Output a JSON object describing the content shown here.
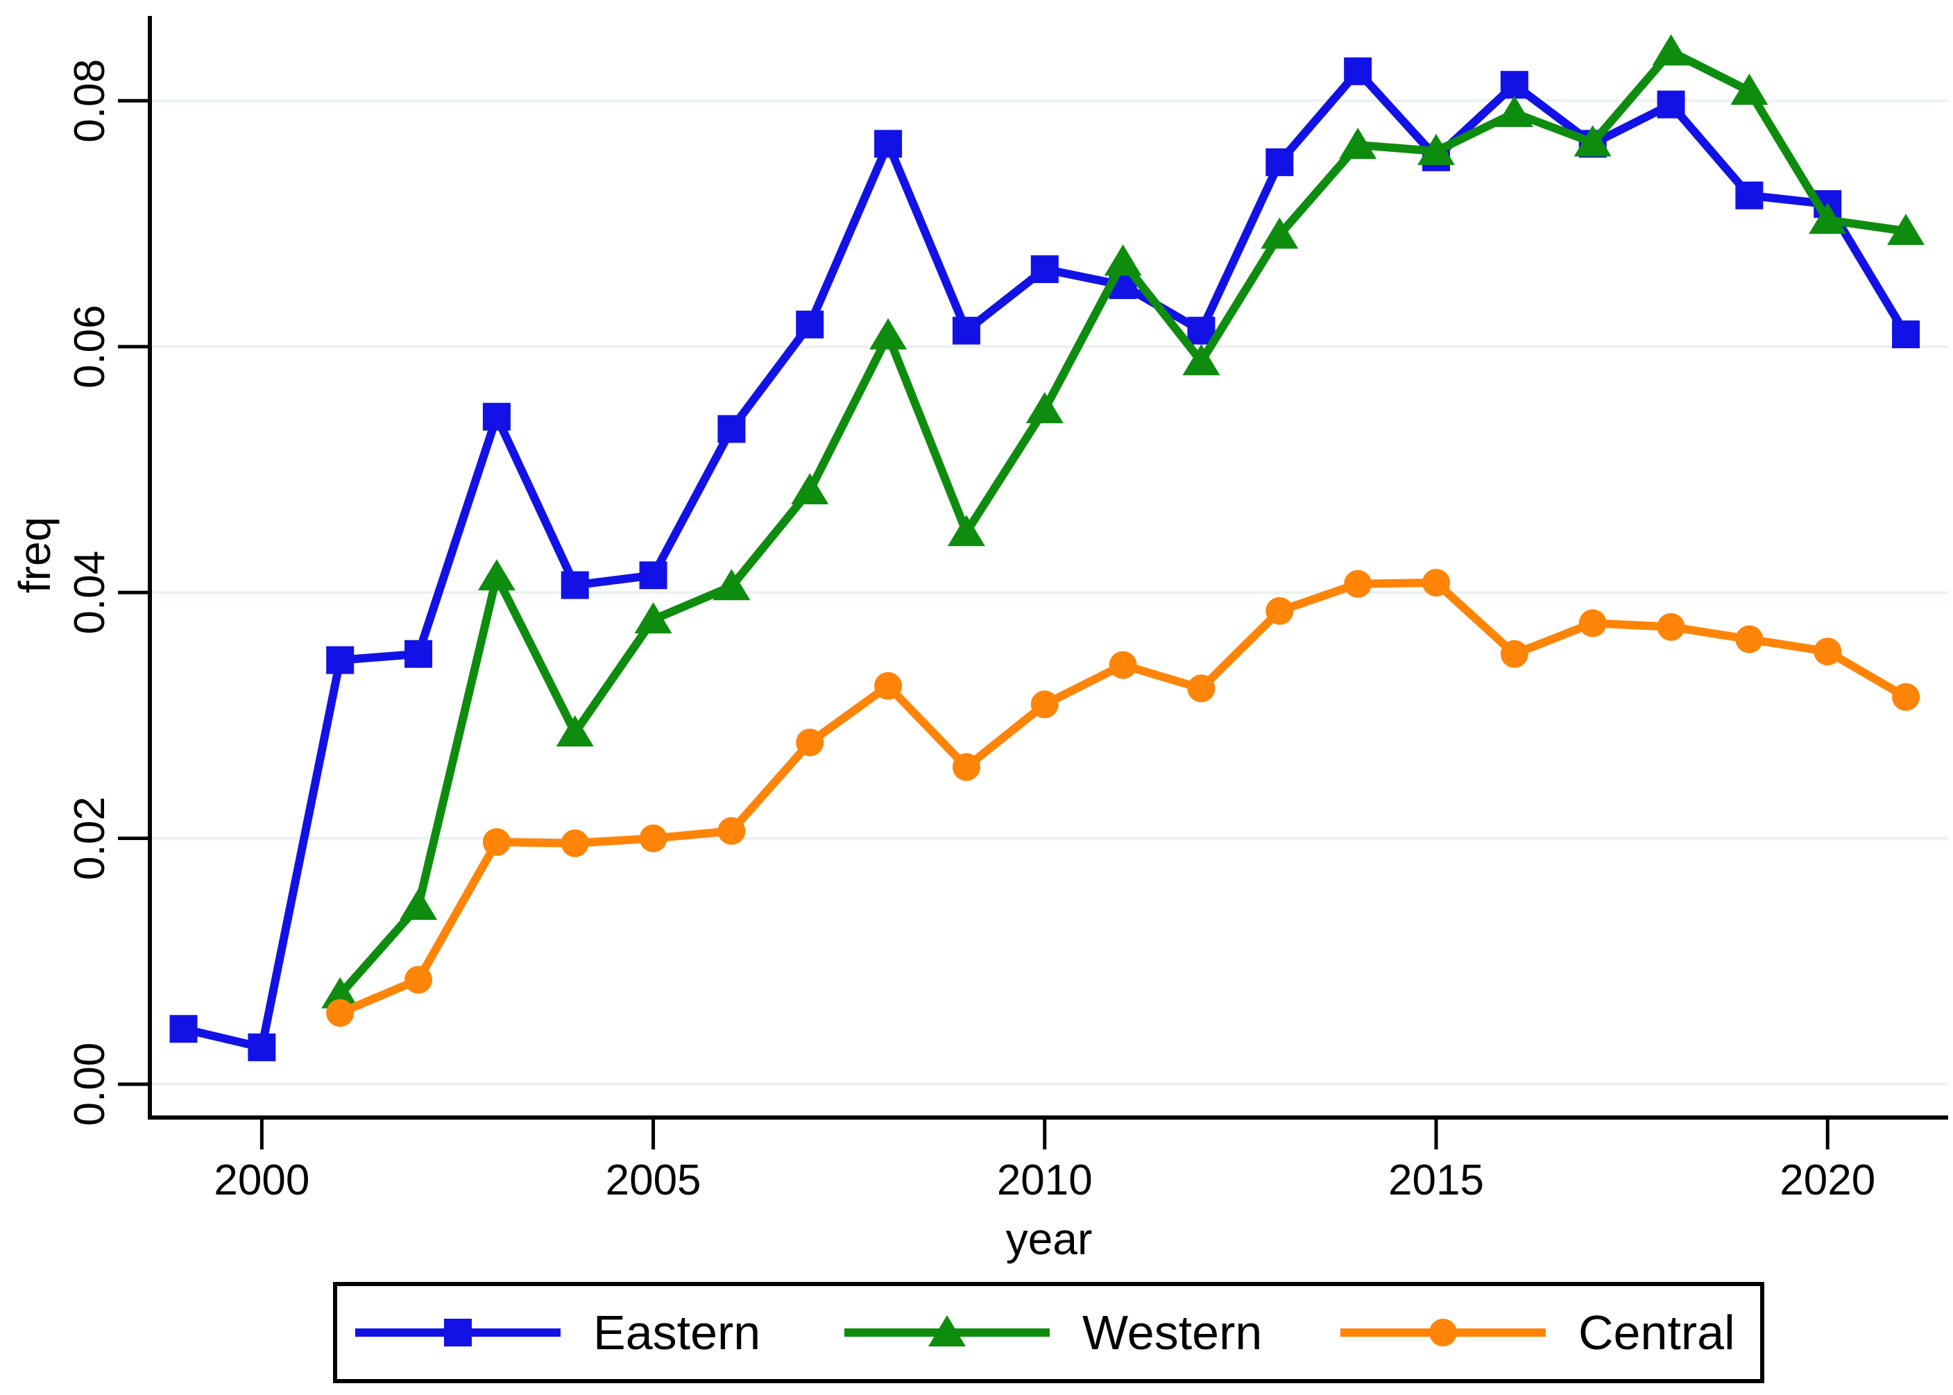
{
  "chart_data": {
    "type": "line",
    "title": "",
    "xlabel": "year",
    "ylabel": "freq",
    "x": [
      1999,
      2000,
      2001,
      2002,
      2003,
      2004,
      2005,
      2006,
      2007,
      2008,
      2009,
      2010,
      2011,
      2012,
      2013,
      2014,
      2015,
      2016,
      2017,
      2018,
      2019,
      2020,
      2021
    ],
    "series": [
      {
        "name": "Eastern",
        "color": "#1212e6",
        "marker": "square",
        "values": [
          0.0045,
          0.003,
          0.0345,
          0.035,
          0.0543,
          0.0406,
          0.0414,
          0.0533,
          0.0618,
          0.0765,
          0.0613,
          0.0663,
          0.065,
          0.0613,
          0.075,
          0.0824,
          0.0754,
          0.0813,
          0.0765,
          0.0797,
          0.0723,
          0.0716,
          0.061
        ]
      },
      {
        "name": "Western",
        "color": "#0e8c0e",
        "marker": "triangle",
        "values": [
          null,
          null,
          0.0073,
          0.0145,
          0.0413,
          0.0286,
          0.0378,
          0.0405,
          0.0483,
          0.0609,
          0.0449,
          0.0549,
          0.0669,
          0.0588,
          0.0691,
          0.0764,
          0.0759,
          0.079,
          0.0766,
          0.084,
          0.0808,
          0.0703,
          0.0694
        ]
      },
      {
        "name": "Central",
        "color": "#ff8408",
        "marker": "circle",
        "values": [
          null,
          null,
          0.0058,
          0.0085,
          0.0197,
          0.0196,
          0.02,
          0.0206,
          0.0278,
          0.0324,
          0.0258,
          0.0309,
          0.0341,
          0.0322,
          0.0385,
          0.0407,
          0.0408,
          0.035,
          0.0375,
          0.0372,
          0.0362,
          0.0352,
          0.0315
        ]
      }
    ],
    "yticks": [
      "0.00",
      "0.02",
      "0.04",
      "0.06",
      "0.08"
    ],
    "ytick_values": [
      0.0,
      0.02,
      0.04,
      0.06,
      0.08
    ],
    "xticks": [
      "2000",
      "2005",
      "2010",
      "2015",
      "2020"
    ],
    "xtick_values": [
      2000,
      2005,
      2010,
      2015,
      2020
    ],
    "xlim": [
      1998.57,
      2021.54
    ],
    "ylim": [
      -0.00271,
      0.0869
    ],
    "grid": true,
    "grid_color": "#eaf2f3",
    "background": "#ffffff",
    "axis_color": "#000000",
    "legend_position": "bottom",
    "legend_labels": [
      "Eastern",
      "Western",
      "Central"
    ]
  }
}
